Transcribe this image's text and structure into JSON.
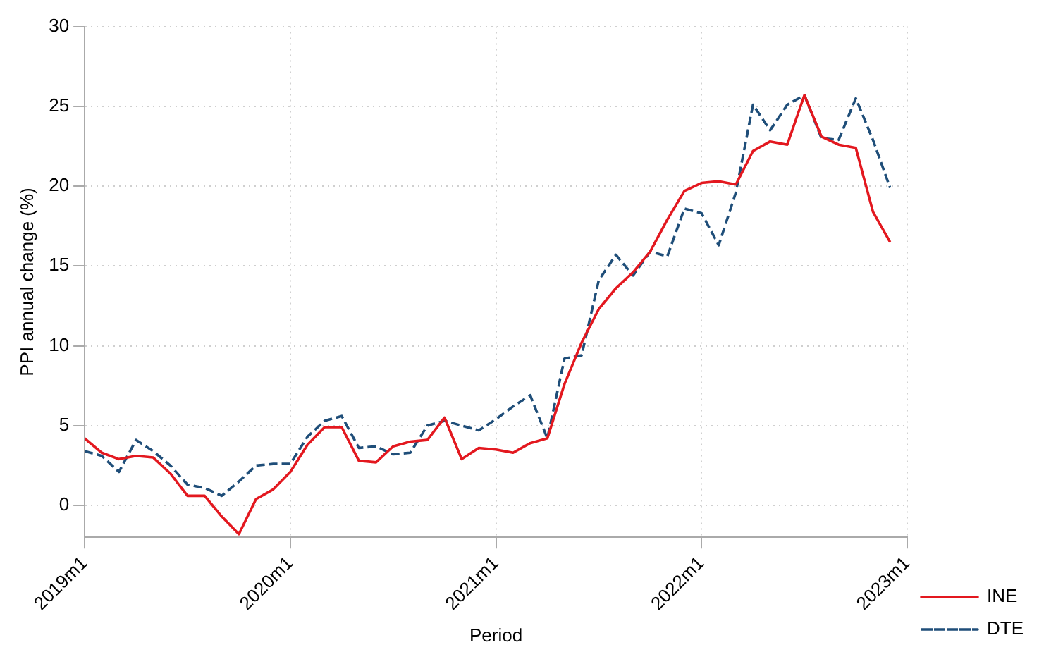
{
  "chart_data": {
    "type": "line",
    "xlabel": "Period",
    "ylabel": "PPI annual change (%)",
    "x": [
      "2019-01",
      "2019-02",
      "2019-03",
      "2019-04",
      "2019-05",
      "2019-06",
      "2019-07",
      "2019-08",
      "2019-09",
      "2019-10",
      "2019-11",
      "2019-12",
      "2020-01",
      "2020-02",
      "2020-03",
      "2020-04",
      "2020-05",
      "2020-06",
      "2020-07",
      "2020-08",
      "2020-09",
      "2020-10",
      "2020-11",
      "2020-12",
      "2021-01",
      "2021-02",
      "2021-03",
      "2021-04",
      "2021-05",
      "2021-06",
      "2021-07",
      "2021-08",
      "2021-09",
      "2021-10",
      "2021-11",
      "2021-12",
      "2022-01",
      "2022-02",
      "2022-03",
      "2022-04",
      "2022-05",
      "2022-06",
      "2022-07",
      "2022-08",
      "2022-09",
      "2022-10",
      "2022-11",
      "2022-12"
    ],
    "series": [
      {
        "name": "INE",
        "color": "#e3181f",
        "line_style": "solid",
        "values": [
          4.2,
          3.3,
          2.9,
          3.1,
          3.0,
          2.0,
          0.6,
          0.6,
          -0.7,
          -1.8,
          0.4,
          1.0,
          2.1,
          3.8,
          4.9,
          4.9,
          2.8,
          2.7,
          3.7,
          4.0,
          4.1,
          5.5,
          2.9,
          3.6,
          3.5,
          3.3,
          3.9,
          4.2,
          7.6,
          10.2,
          12.3,
          13.6,
          14.6,
          15.9,
          17.9,
          19.7,
          20.2,
          20.3,
          20.1,
          22.2,
          22.8,
          22.6,
          25.7,
          23.1,
          22.6,
          22.4,
          18.4,
          16.5
        ]
      },
      {
        "name": "DTE",
        "color": "#1f4e79",
        "line_style": "dashed",
        "values": [
          3.4,
          3.1,
          2.1,
          4.1,
          3.4,
          2.5,
          1.3,
          1.1,
          0.6,
          1.5,
          2.5,
          2.6,
          2.6,
          4.3,
          5.3,
          5.6,
          3.6,
          3.7,
          3.2,
          3.3,
          5.0,
          5.3,
          5.0,
          4.7,
          5.4,
          6.2,
          6.9,
          4.2,
          9.2,
          9.4,
          14.1,
          15.7,
          14.4,
          15.9,
          15.6,
          18.6,
          18.3,
          16.3,
          19.6,
          25.1,
          23.5,
          25.1,
          25.7,
          23.0,
          22.9,
          25.5,
          22.9,
          19.9
        ]
      }
    ],
    "xlim": [
      "2019-01",
      "2023-01"
    ],
    "xticks": [
      {
        "value": "2019-01",
        "label": "2019m1"
      },
      {
        "value": "2020-01",
        "label": "2020m1"
      },
      {
        "value": "2021-01",
        "label": "2021m1"
      },
      {
        "value": "2022-01",
        "label": "2022m1"
      },
      {
        "value": "2023-01",
        "label": "2023m1"
      }
    ],
    "ylim": [
      -2,
      30
    ],
    "yticks": [
      0,
      5,
      10,
      15,
      20,
      25,
      30
    ],
    "grid": true,
    "legend": "right",
    "marker": "none"
  }
}
